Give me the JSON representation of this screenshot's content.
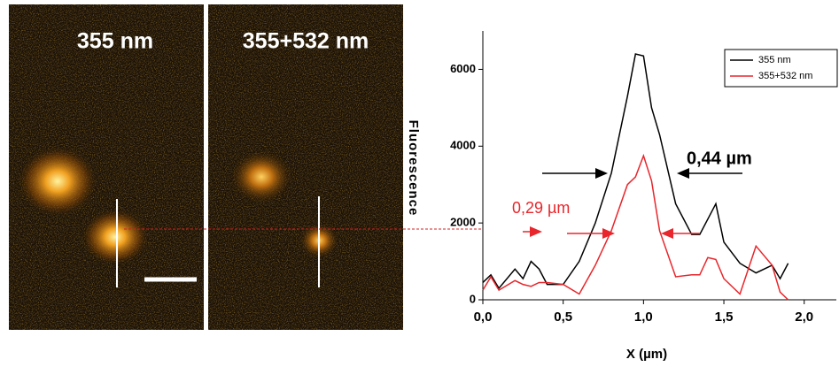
{
  "chart_data": {
    "type": "line",
    "panel_labels": [
      "355 nm",
      "355+532 nm"
    ],
    "xlabel": "X (µm)",
    "ylabel": "Fluorescence",
    "annotations": [
      "0,44 µm",
      "0,29 µm"
    ],
    "x": [
      0,
      0.05,
      0.1,
      0.2,
      0.25,
      0.3,
      0.35,
      0.4,
      0.5,
      0.6,
      0.7,
      0.8,
      0.9,
      0.95,
      1.0,
      1.05,
      1.1,
      1.2,
      1.3,
      1.35,
      1.4,
      1.45,
      1.5,
      1.6,
      1.7,
      1.8,
      1.85,
      1.9
    ],
    "series": [
      {
        "name": "355 nm",
        "color": "#000000",
        "values": [
          450,
          650,
          300,
          800,
          550,
          1000,
          800,
          400,
          400,
          1000,
          2000,
          3300,
          5300,
          6400,
          6350,
          5000,
          4300,
          2500,
          1700,
          1700,
          2100,
          2500,
          1500,
          950,
          700,
          900,
          550,
          950
        ]
      },
      {
        "name": "355+532 nm",
        "color": "#e8262b",
        "values": [
          250,
          600,
          250,
          500,
          400,
          350,
          450,
          450,
          400,
          150,
          900,
          1800,
          3000,
          3200,
          3750,
          3100,
          1800,
          600,
          650,
          650,
          1100,
          1050,
          550,
          150,
          1400,
          900,
          200,
          0
        ]
      }
    ],
    "xlim": [
      0,
      2.2
    ],
    "xticks": [
      {
        "value": 0,
        "label": "0,0"
      },
      {
        "value": 0.5,
        "label": "0,5"
      },
      {
        "value": 1,
        "label": "1,0"
      },
      {
        "value": 1.5,
        "label": "1,5"
      },
      {
        "value": 2,
        "label": "2,0"
      }
    ],
    "ylim": [
      0,
      7000
    ],
    "yticks": [
      0,
      2000,
      4000,
      6000
    ],
    "legend": "upper right"
  }
}
